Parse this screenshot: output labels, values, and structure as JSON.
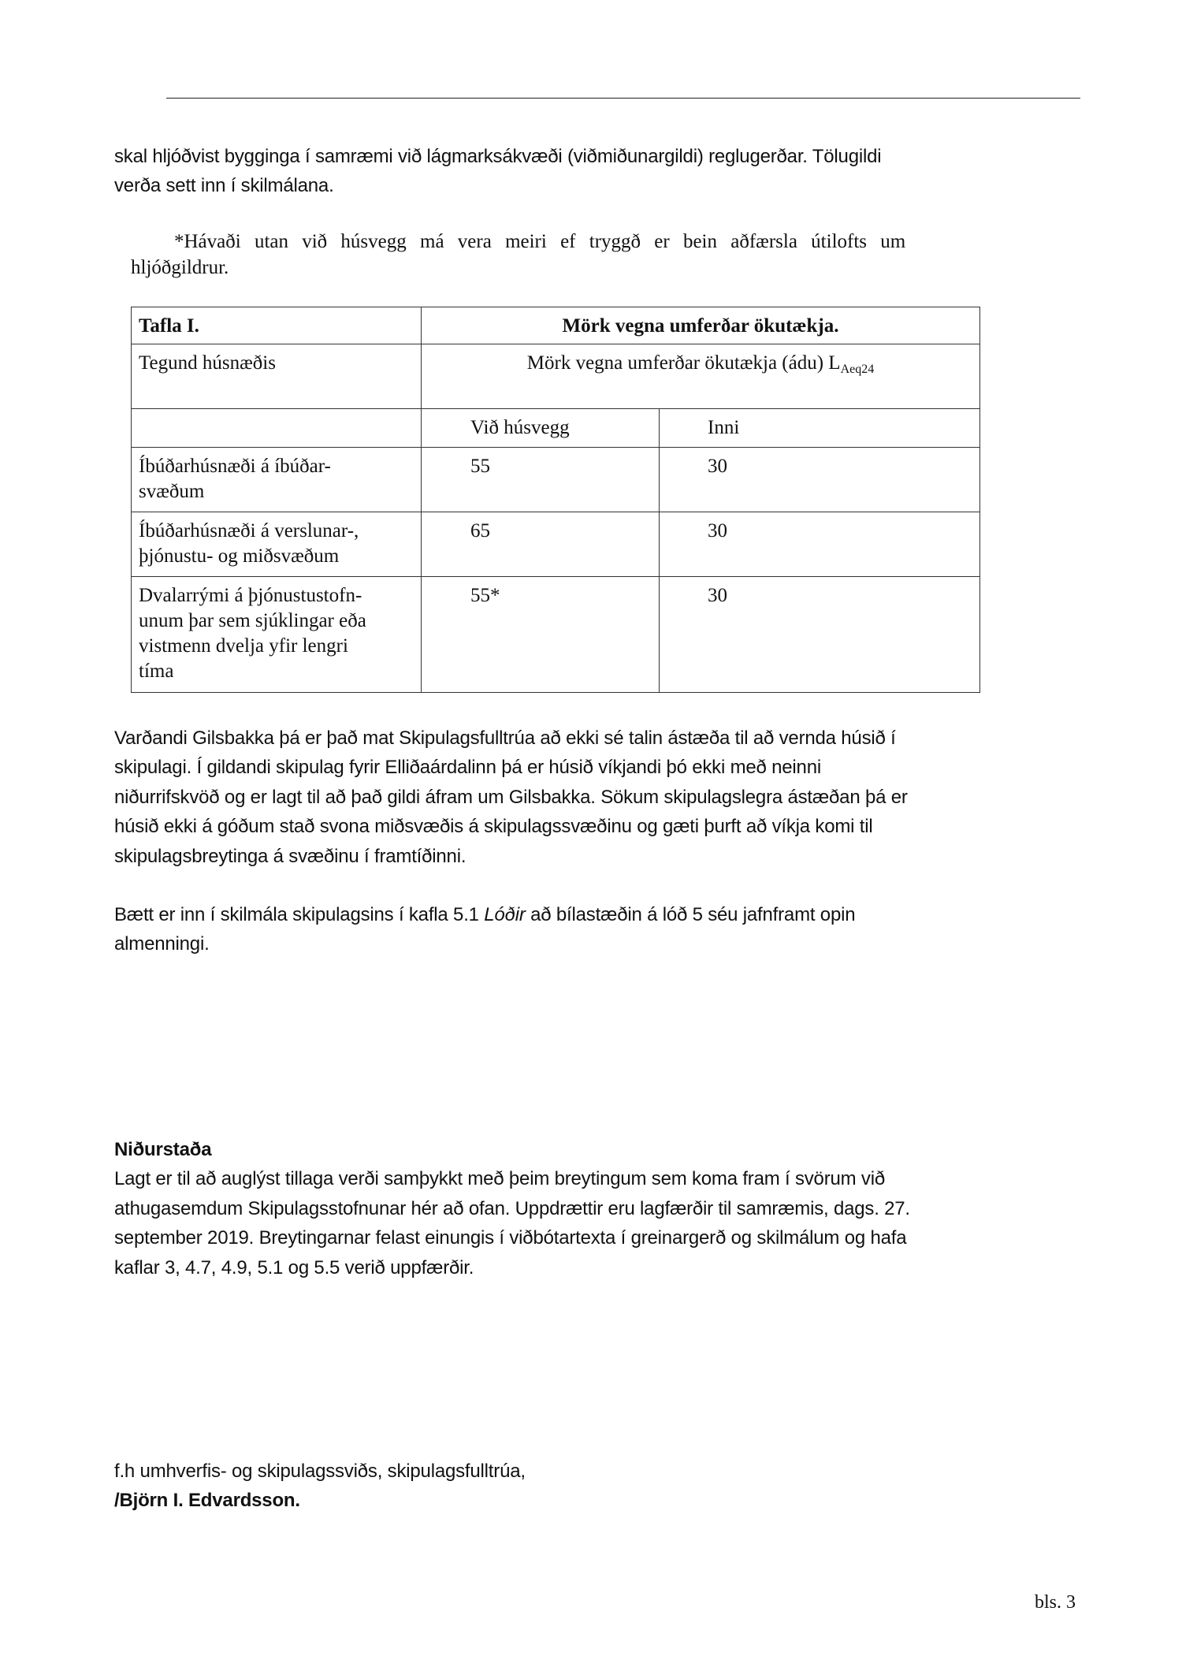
{
  "intro": {
    "lines": [
      "skal hljóðvist bygginga í samræmi við lágmarksákvæði (viðmiðunargildi) reglugerðar.  Tölugildi",
      "verða sett inn í skilmálana."
    ]
  },
  "footnote": {
    "lines": [
      "*Hávaði utan við húsvegg má vera meiri ef tryggð er bein aðfærsla útilofts um",
      "hljóðgildrur."
    ]
  },
  "table": {
    "caption": "Tafla I.",
    "title": "Mörk vegna umferðar ökutækja.",
    "type_header": "Tegund húsnæðis",
    "measure_header": "Mörk vegna umferðar ökutækja (ádu) L",
    "measure_subscript": "Aeq24",
    "columns": [
      "Við húsvegg",
      "Inni"
    ],
    "rows": [
      {
        "type_lines": [
          "Íbúðarhúsnæði á íbúðar-",
          "svæðum"
        ],
        "outside": "55",
        "inside": "30"
      },
      {
        "type_lines": [
          "Íbúðarhúsnæði á verslunar-,",
          "þjónustu- og miðsvæðum"
        ],
        "outside": "65",
        "inside": "30"
      },
      {
        "type_lines": [
          "Dvalarrými á þjónustustofn-",
          "unum þar sem sjúklingar eða",
          "vistmenn dvelja yfir lengri",
          "tíma"
        ],
        "outside": "55*",
        "inside": "30"
      }
    ]
  },
  "gilsbakki": {
    "lines": [
      "Varðandi Gilsbakka þá er það mat Skipulagsfulltrúa að ekki sé talin ástæða til að vernda húsið í",
      "skipulagi. Í gildandi skipulag fyrir Elliðaárdalinn þá er húsið víkjandi þó ekki með neinni",
      "niðurrifskvöð og er lagt til að það gildi áfram um Gilsbakka. Sökum skipulagslegra ástæðan þá er",
      "húsið ekki á góðum stað svona miðsvæðis á skipulagssvæðinu og gæti þurft að víkja komi til",
      "skipulagsbreytinga á svæðinu í framtíðinni."
    ]
  },
  "parking": {
    "line1_before": "Bætt er inn í skilmála skipulagsins í kafla 5.1 ",
    "line1_italic": "Lóðir",
    "line1_after": " að bílastæðin á lóð 5 séu jafnframt opin",
    "line2": "almenningi."
  },
  "conclusion": {
    "heading": "Niðurstaða",
    "lines": [
      "Lagt er til að auglýst tillaga verði samþykkt með þeim breytingum sem koma fram í svörum við",
      "athugasemdum Skipulagsstofnunar hér að ofan. Uppdrættir eru lagfærðir til samræmis, dags. 27.",
      "september 2019.  Breytingarnar felast einungis í viðbótartexta í greinargerð og skilmálum og hafa",
      "kaflar 3, 4.7, 4.9, 5.1 og 5.5 verið uppfærðir."
    ]
  },
  "signature": {
    "line": "f.h umhverfis- og skipulagssviðs, skipulagsfulltrúa,",
    "name": "/Björn I. Edvardsson."
  },
  "footer": {
    "page": "bls. 3"
  }
}
